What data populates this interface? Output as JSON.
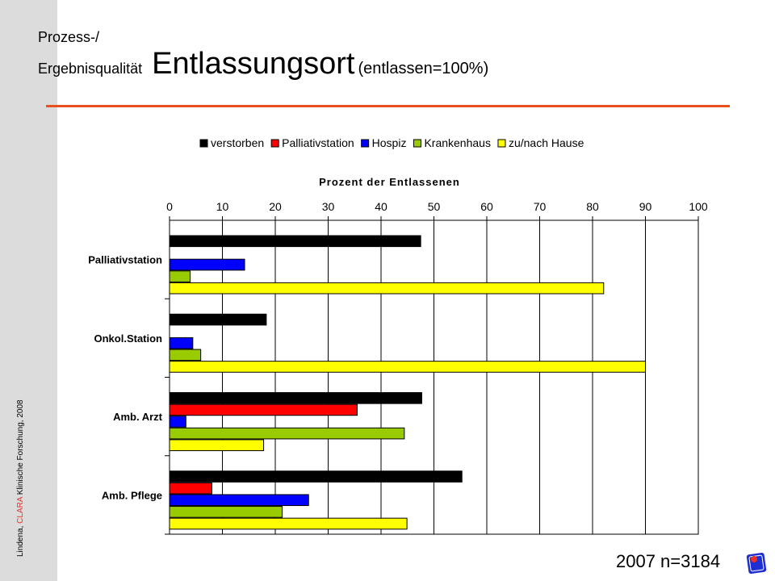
{
  "sidebar": {
    "prefix": "Lindena, ",
    "brand": "CLARA",
    "suffix": " Klinische Forschung, 2008"
  },
  "header": {
    "line1": "Prozess-/",
    "line2": "Ergebnisqualität",
    "title": "Entlassungsort",
    "note": "(entlassen=100%)"
  },
  "footer": {
    "count_label": "2007 n=3184"
  },
  "colors": {
    "accent_rule": "#e8501d",
    "sidebar_bg": "#dcdcdc",
    "logo_blue": "#1f2fd0",
    "logo_red": "#e8312a"
  },
  "logo": {
    "icon": "logo-icon"
  },
  "chart_data": {
    "type": "bar",
    "orientation": "horizontal",
    "title": "",
    "xlabel": "Prozent der Entlassenen",
    "ylabel": "",
    "xlim": [
      0,
      100
    ],
    "xticks": [
      0,
      10,
      20,
      30,
      40,
      50,
      60,
      70,
      80,
      90,
      100
    ],
    "x_axis_position": "top",
    "grid": true,
    "legend_position": "top",
    "categories": [
      "Palliativstation",
      "Onkol.Station",
      "Amb. Arzt",
      "Amb. Pflege"
    ],
    "series": [
      {
        "name": "verstorben",
        "color": "#000000",
        "values": [
          47.5,
          18.3,
          47.7,
          55.3
        ]
      },
      {
        "name": "Palliativstation",
        "color": "#ff0000",
        "values": [
          0,
          0,
          35.5,
          8
        ]
      },
      {
        "name": "Hospiz",
        "color": "#0000ff",
        "values": [
          14.2,
          4.4,
          3.1,
          26.3
        ]
      },
      {
        "name": "Krankenhaus",
        "color": "#99cc00",
        "values": [
          3.9,
          5.9,
          44.4,
          21.3
        ]
      },
      {
        "name": "zu/nach Hause",
        "color": "#ffff00",
        "values": [
          82.1,
          90,
          17.8,
          44.9
        ]
      }
    ]
  }
}
